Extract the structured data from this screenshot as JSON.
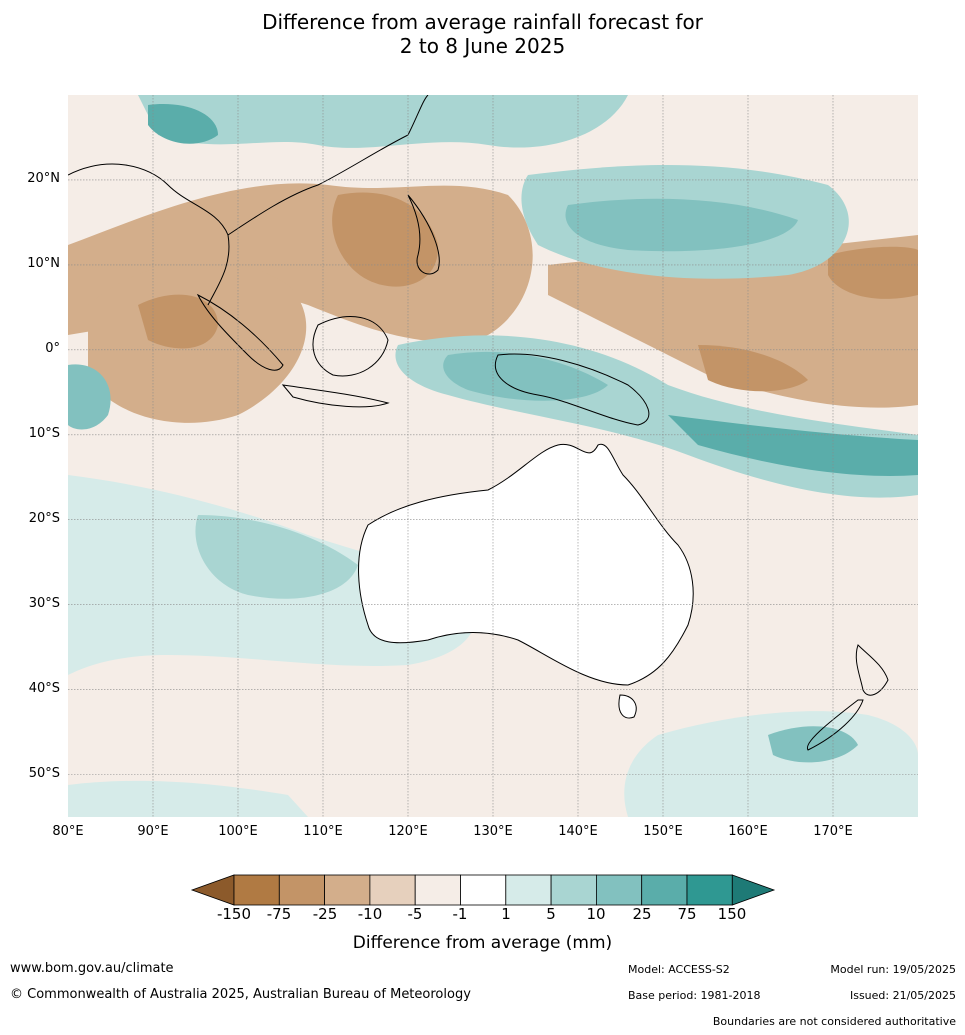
{
  "title": {
    "line1": "Difference from average rainfall forecast for",
    "line2": "2 to 8 June 2025"
  },
  "map": {
    "lon_range": [
      80,
      180
    ],
    "lat_range": [
      -55,
      30
    ],
    "lat_labels": [
      "20°N",
      "10°N",
      "0°",
      "10°S",
      "20°S",
      "30°S",
      "40°S",
      "50°S"
    ],
    "lat_values": [
      20,
      10,
      0,
      -10,
      -20,
      -30,
      -40,
      -50
    ],
    "lon_labels": [
      "80°E",
      "90°E",
      "100°E",
      "110°E",
      "120°E",
      "130°E",
      "140°E",
      "150°E",
      "160°E",
      "170°E"
    ],
    "lon_values": [
      80,
      90,
      100,
      110,
      120,
      130,
      140,
      150,
      160,
      170
    ]
  },
  "colorbar": {
    "ticks": [
      "-150",
      "-75",
      "-25",
      "-10",
      "-5",
      "-1",
      "1",
      "5",
      "10",
      "25",
      "75",
      "150"
    ],
    "colors": [
      "#8c5a2b",
      "#b07a43",
      "#c39467",
      "#d3ae8b",
      "#e6d0bd",
      "#f5ede7",
      "#ffffff",
      "#d6ebe9",
      "#a9d5d2",
      "#82c1bf",
      "#5aadaa",
      "#2f9892",
      "#1e7a76"
    ],
    "label": "Difference from average (mm)"
  },
  "footer": {
    "website": "www.bom.gov.au/climate",
    "copyright": "© Commonwealth of Australia 2025, Australian Bureau of Meteorology",
    "model": "Model: ACCESS-S2",
    "model_run": "Model run: 19/05/2025",
    "base_period": "Base period: 1981-2018",
    "issued": "Issued: 21/05/2025",
    "boundaries": "Boundaries are not considered authoritative"
  }
}
